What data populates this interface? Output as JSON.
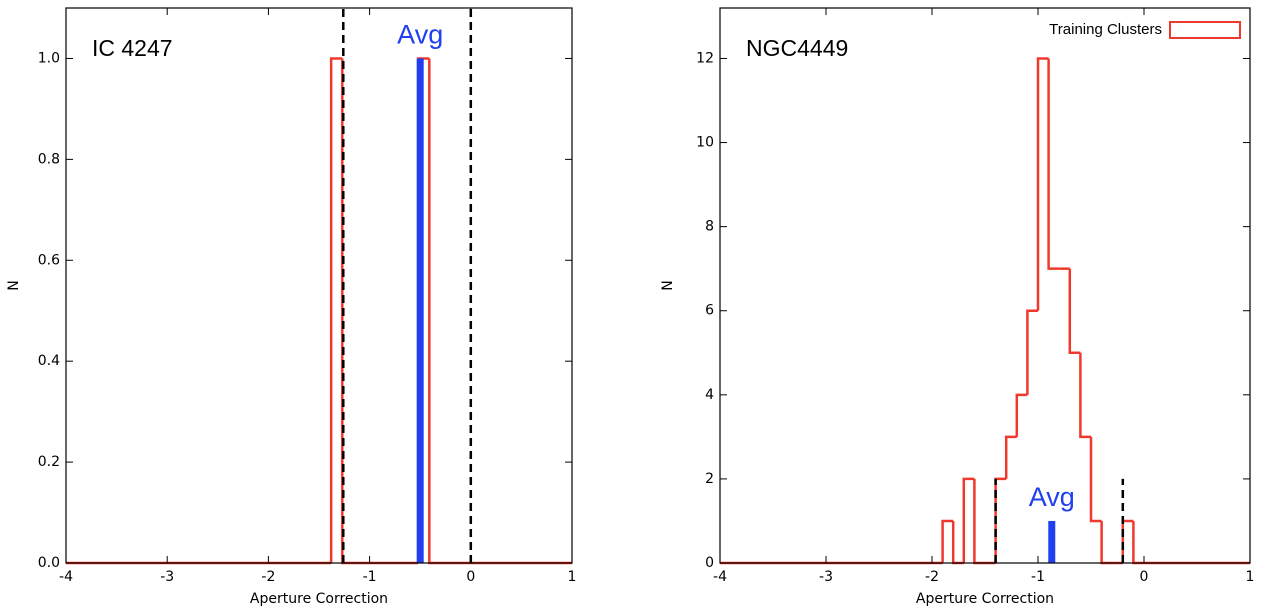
{
  "chart_data": [
    {
      "type": "histogram",
      "title": "IC 4247",
      "xlabel": "Aperture Correction",
      "ylabel": "N",
      "xlim": [
        -4,
        1
      ],
      "xticks": [
        -4,
        -3,
        -2,
        -1,
        0,
        1
      ],
      "ylim": [
        0,
        1.1
      ],
      "yticks": [
        {
          "value": 0,
          "label": "0.0"
        },
        0.2,
        0.4,
        0.6,
        0.8,
        {
          "value": 1,
          "label": "1.0"
        }
      ],
      "bins": [
        -4,
        -1.38,
        -1.27,
        -0.52,
        -0.41,
        1
      ],
      "values": [
        0,
        1,
        0,
        1,
        0
      ],
      "color": "#f0392e",
      "vlines": [
        {
          "x": -1.26
        },
        {
          "x": 0.0
        }
      ],
      "avg": {
        "label": "Avg",
        "x": -0.5,
        "value": 1,
        "color": "#1f3ff0"
      }
    },
    {
      "type": "histogram",
      "title": "NGC4449",
      "xlabel": "Aperture Correction",
      "ylabel": "N",
      "xlim": [
        -4,
        1
      ],
      "xticks": [
        -4,
        -3,
        -2,
        -1,
        0,
        1
      ],
      "ylim": [
        0,
        13.2
      ],
      "yticks": [
        0,
        2,
        4,
        6,
        8,
        10,
        12
      ],
      "bins": [
        -4,
        -1.9,
        -1.8,
        -1.7,
        -1.6,
        -1.5,
        -1.4,
        -1.3,
        -1.2,
        -1.1,
        -1.0,
        -0.9,
        -0.8,
        -0.7,
        -0.6,
        -0.5,
        -0.4,
        -0.3,
        -0.2,
        -0.1,
        1
      ],
      "values": [
        0,
        1,
        0,
        2,
        0,
        0,
        2,
        3,
        4,
        6,
        12,
        7,
        7,
        5,
        3,
        1,
        0,
        0,
        1,
        0
      ],
      "color": "#f0392e",
      "legend_label": "Training Clusters",
      "legend": "upper right",
      "vlines": [
        {
          "x": -1.4,
          "ymax": 2
        },
        {
          "x": -0.2,
          "ymax": 2
        }
      ],
      "avg": {
        "label": "Avg",
        "x": -0.87,
        "value": 1,
        "color": "#1f3ff0"
      }
    }
  ]
}
